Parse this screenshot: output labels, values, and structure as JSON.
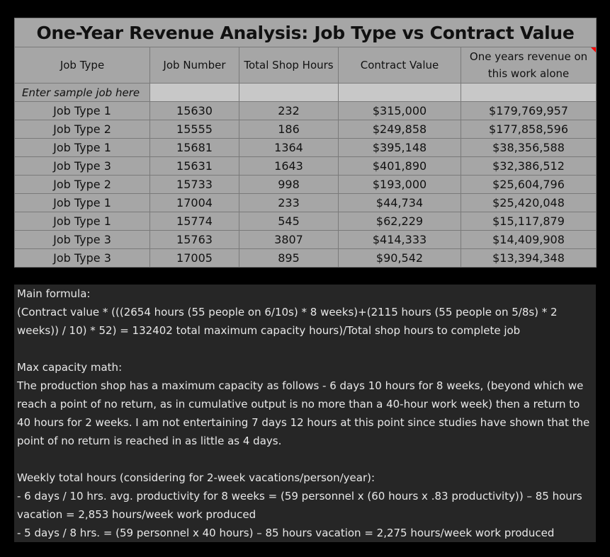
{
  "table": {
    "title": "One-Year Revenue Analysis: Job Type vs Contract Value",
    "headers": [
      "Job Type",
      "Job Number",
      "Total Shop Hours",
      "Contract Value",
      "One years revenue on this work alone"
    ],
    "sample_row_label": "Enter sample job here",
    "rows": [
      [
        "Job Type 1",
        "15630",
        "232",
        "$315,000",
        "$179,769,957"
      ],
      [
        "Job Type 2",
        "15555",
        "186",
        "$249,858",
        "$177,858,596"
      ],
      [
        "Job Type 1",
        "15681",
        "1364",
        "$395,148",
        "$38,356,588"
      ],
      [
        "Job Type 3",
        "15631",
        "1643",
        "$401,890",
        "$32,386,512"
      ],
      [
        "Job Type 2",
        "15733",
        "998",
        "$193,000",
        "$25,604,796"
      ],
      [
        "Job Type 1",
        "17004",
        "233",
        "$44,734",
        "$25,420,048"
      ],
      [
        "Job Type 1",
        "15774",
        "545",
        "$62,229",
        "$15,117,879"
      ],
      [
        "Job Type 3",
        "15763",
        "3807",
        "$414,333",
        "$14,409,908"
      ],
      [
        "Job Type 3",
        "17005",
        "895",
        "$90,542",
        "$13,394,348"
      ]
    ],
    "comment_indicator_color": "#ff0000"
  },
  "notes": {
    "formula_heading": "Main formula:",
    "formula_text": "(Contract value * (((2654 hours (55 people on 6/10s) * 8 weeks)+(2115 hours (55 people on 5/8s) * 2 weeks)) / 10) * 52) = 132402 total maximum capacity hours)/Total shop hours to complete job",
    "capacity_heading": "Max capacity math:",
    "capacity_text": "The production shop has a maximum capacity as follows - 6 days 10 hours for 8 weeks, (beyond which we reach a point of no return, as in cumulative output is no more than a 40-hour work week) then a return to 40 hours for 2 weeks. I am not entertaining 7 days 12 hours at this point since studies have shown that the point of no return is reached in as little as 4 days.",
    "weekly_heading": "Weekly total hours (considering for 2-week vacations/person/year):",
    "weekly_line_1": "- 6 days / 10 hrs. avg. productivity for 8 weeks = (59 personnel x (60 hours x .83 productivity)) – 85 hours vacation = 2,853 hours/week work produced",
    "weekly_line_2": "- 5 days / 8 hrs. = (59 personnel x 40 hours) – 85 hours vacation = 2,275 hours/week work produced"
  }
}
